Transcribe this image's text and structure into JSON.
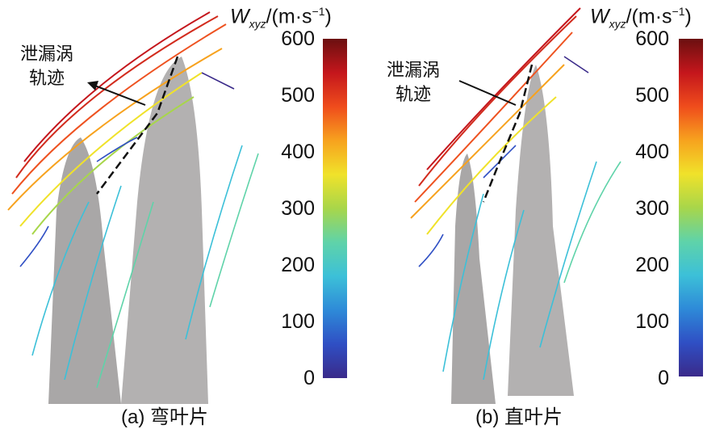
{
  "colorbar": {
    "symbol": "W",
    "subscript": "xyz",
    "unit": "/(m·s",
    "unit_exp": "−1",
    "unit_close": ")",
    "min": 0,
    "max": 600,
    "ticks": [
      "600",
      "500",
      "400",
      "300",
      "200",
      "100",
      "0"
    ],
    "colors": [
      "#3a2a8a",
      "#2f4fc4",
      "#2e8ad8",
      "#3cc0d8",
      "#5fd3a9",
      "#a8d64a",
      "#f0e22a",
      "#f7a21e",
      "#ef4c1c",
      "#c4161c",
      "#6b1010"
    ]
  },
  "panels": [
    {
      "caption": "(a) 弯叶片",
      "vortex_label_line1": "泄漏涡",
      "vortex_label_line2": "轨迹"
    },
    {
      "caption": "(b) 直叶片",
      "vortex_label_line1": "泄漏涡",
      "vortex_label_line2": "轨迹"
    }
  ]
}
